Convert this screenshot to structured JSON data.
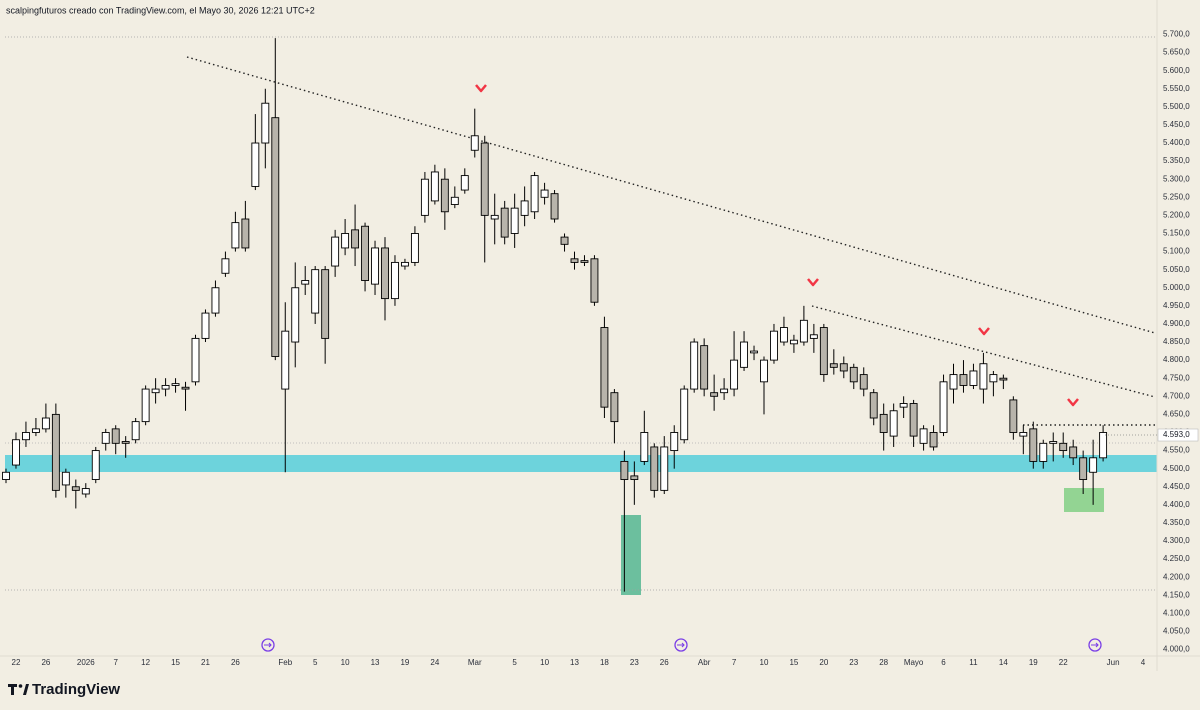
{
  "chart_data": {
    "type": "candlestick",
    "title": "scalpingfuturos creado con TradingView.com, el Mayo 30, 2026 12:21 UTC+2",
    "brand": "TradingView",
    "up_color": "#ffffff",
    "down_color": "#b8b4ab",
    "grid": false,
    "categories": [
      null,
      "22",
      null,
      null,
      "26",
      null,
      null,
      null,
      "2026",
      null,
      null,
      "7",
      null,
      null,
      "12",
      null,
      null,
      "15",
      null,
      null,
      "21",
      null,
      null,
      "26",
      null,
      null,
      null,
      null,
      "Feb",
      null,
      null,
      "5",
      null,
      null,
      "10",
      null,
      null,
      "13",
      null,
      null,
      "19",
      null,
      null,
      "24",
      null,
      null,
      null,
      "Mar",
      null,
      null,
      null,
      "5",
      null,
      null,
      "10",
      null,
      null,
      "13",
      null,
      null,
      "18",
      null,
      null,
      "23",
      null,
      null,
      "26",
      null,
      null,
      null,
      "Abr",
      null,
      null,
      "7",
      null,
      null,
      "10",
      null,
      null,
      "15",
      null,
      null,
      "20",
      null,
      null,
      "23",
      null,
      null,
      "28",
      null,
      null,
      "Mayo",
      null,
      null,
      "6",
      null,
      null,
      "11",
      null,
      null,
      "14",
      null,
      null,
      "19",
      null,
      null,
      "22",
      null,
      null,
      null,
      null,
      "Jun",
      null,
      null,
      "4"
    ],
    "open": [
      4470,
      4510,
      4580,
      4600,
      4610,
      4650,
      4455,
      4450,
      4430,
      4470,
      4570,
      4610,
      4575,
      4580,
      4630,
      4710,
      4720,
      4730,
      4725,
      4740,
      4860,
      4930,
      5040,
      5110,
      5190,
      5280,
      5400,
      5470,
      4720,
      4850,
      5010,
      4930,
      5050,
      5060,
      5110,
      5160,
      5170,
      5010,
      5110,
      4970,
      5060,
      5070,
      5200,
      5240,
      5300,
      5230,
      5270,
      5380,
      5400,
      5190,
      5220,
      5150,
      5200,
      5210,
      5250,
      5260,
      5140,
      5080,
      5075,
      5080,
      4890,
      4710,
      4520,
      4480,
      4520,
      4560,
      4440,
      4550,
      4580,
      4720,
      4840,
      4710,
      4710,
      4720,
      4780,
      4820,
      4740,
      4800,
      4850,
      4845,
      4850,
      4860,
      4890,
      4790,
      4790,
      4780,
      4760,
      4710,
      4650,
      4590,
      4670,
      4680,
      4570,
      4600,
      4600,
      4720,
      4760,
      4730,
      4720,
      4740,
      4750,
      4690,
      4590,
      4610,
      4520,
      4570,
      4570,
      4560,
      4530,
      4490,
      4530,
      null,
      null,
      null,
      null
    ],
    "high": [
      4500,
      4600,
      4630,
      4640,
      4680,
      4680,
      4500,
      4470,
      4460,
      4560,
      4610,
      4620,
      4590,
      4640,
      4730,
      4750,
      4750,
      4750,
      4740,
      4870,
      4940,
      5020,
      5100,
      5210,
      5240,
      5480,
      5550,
      5690,
      4960,
      5070,
      5060,
      5060,
      5060,
      5160,
      5190,
      5230,
      5180,
      5130,
      5140,
      5090,
      5080,
      5170,
      5320,
      5340,
      5330,
      5280,
      5330,
      5495,
      5420,
      5260,
      5240,
      5260,
      5280,
      5320,
      5290,
      5270,
      5150,
      5100,
      5090,
      5090,
      4920,
      4720,
      4550,
      4520,
      4660,
      4570,
      4590,
      4620,
      4730,
      4860,
      4860,
      4760,
      4750,
      4880,
      4880,
      4840,
      4810,
      4900,
      4920,
      4870,
      4950,
      4900,
      4900,
      4830,
      4810,
      4790,
      4780,
      4720,
      4680,
      4680,
      4700,
      4690,
      4620,
      4620,
      4760,
      4790,
      4800,
      4790,
      4820,
      4770,
      4760,
      4700,
      4620,
      4630,
      4580,
      4600,
      4600,
      4580,
      4550,
      4580,
      4620,
      null,
      null,
      null,
      null
    ],
    "low": [
      4460,
      4500,
      4560,
      4590,
      4600,
      4420,
      4420,
      4390,
      4420,
      4460,
      4550,
      4540,
      4530,
      4570,
      4620,
      4680,
      4700,
      4710,
      4660,
      4730,
      4850,
      4920,
      5030,
      5100,
      5100,
      5270,
      5330,
      4800,
      4490,
      4780,
      4980,
      4900,
      4790,
      5030,
      5090,
      5060,
      4990,
      4980,
      4910,
      4950,
      5050,
      5060,
      5180,
      5230,
      5160,
      5220,
      5260,
      5360,
      5070,
      5120,
      5120,
      5110,
      5170,
      5190,
      5230,
      5180,
      5100,
      5050,
      5060,
      4950,
      4640,
      4570,
      4160,
      4400,
      4510,
      4420,
      4430,
      4500,
      4570,
      4710,
      4700,
      4660,
      4690,
      4700,
      4770,
      4800,
      4650,
      4790,
      4840,
      4820,
      4840,
      4820,
      4740,
      4760,
      4750,
      4720,
      4700,
      4620,
      4550,
      4560,
      4640,
      4560,
      4550,
      4550,
      4590,
      4680,
      4710,
      4720,
      4680,
      4700,
      4720,
      4580,
      4540,
      4500,
      4500,
      4520,
      4530,
      4510,
      4430,
      4400,
      4520,
      null,
      null,
      null,
      null
    ],
    "close": [
      4490,
      4580,
      4600,
      4610,
      4640,
      4440,
      4490,
      4440,
      4445,
      4550,
      4600,
      4570,
      4570,
      4630,
      4720,
      4720,
      4730,
      4735,
      4720,
      4860,
      4930,
      5000,
      5080,
      5180,
      5110,
      5400,
      5510,
      4810,
      4880,
      5000,
      5020,
      5050,
      4860,
      5140,
      5150,
      5110,
      5020,
      5110,
      4970,
      5070,
      5070,
      5150,
      5300,
      5320,
      5210,
      5250,
      5310,
      5420,
      5200,
      5200,
      5140,
      5220,
      5240,
      5310,
      5270,
      5190,
      5120,
      5070,
      5070,
      4960,
      4670,
      4630,
      4470,
      4470,
      4600,
      4440,
      4560,
      4600,
      4720,
      4850,
      4720,
      4700,
      4720,
      4800,
      4850,
      4825,
      4800,
      4880,
      4890,
      4855,
      4910,
      4870,
      4760,
      4780,
      4770,
      4740,
      4720,
      4640,
      4600,
      4660,
      4680,
      4590,
      4610,
      4560,
      4740,
      4760,
      4730,
      4770,
      4790,
      4760,
      4745,
      4600,
      4600,
      4520,
      4570,
      4575,
      4550,
      4530,
      4470,
      4530,
      4600,
      null,
      null,
      null,
      null
    ],
    "ylim": [
      3985,
      5740
    ],
    "yticks": [
      {
        "value": 4000,
        "label": "4.000,0"
      },
      {
        "value": 4050,
        "label": "4.050,0"
      },
      {
        "value": 4100,
        "label": "4.100,0"
      },
      {
        "value": 4150,
        "label": "4.150,0"
      },
      {
        "value": 4200,
        "label": "4.200,0"
      },
      {
        "value": 4250,
        "label": "4.250,0"
      },
      {
        "value": 4300,
        "label": "4.300,0"
      },
      {
        "value": 4350,
        "label": "4.350,0"
      },
      {
        "value": 4400,
        "label": "4.400,0"
      },
      {
        "value": 4450,
        "label": "4.450,0"
      },
      {
        "value": 4500,
        "label": "4.500,0"
      },
      {
        "value": 4550,
        "label": "4.550,0"
      },
      {
        "value": 4600,
        "label": "4.600,0"
      },
      {
        "value": 4650,
        "label": "4.650,0"
      },
      {
        "value": 4700,
        "label": "4.700,0"
      },
      {
        "value": 4750,
        "label": "4.750,0"
      },
      {
        "value": 4800,
        "label": "4.800,0"
      },
      {
        "value": 4850,
        "label": "4.850,0"
      },
      {
        "value": 4900,
        "label": "4.900,0"
      },
      {
        "value": 4950,
        "label": "4.950,0"
      },
      {
        "value": 5000,
        "label": "5.000,0"
      },
      {
        "value": 5050,
        "label": "5.050,0"
      },
      {
        "value": 5100,
        "label": "5.100,0"
      },
      {
        "value": 5150,
        "label": "5.150,0"
      },
      {
        "value": 5200,
        "label": "5.200,0"
      },
      {
        "value": 5250,
        "label": "5.250,0"
      },
      {
        "value": 5300,
        "label": "5.300,0"
      },
      {
        "value": 5350,
        "label": "5.350,0"
      },
      {
        "value": 5400,
        "label": "5.400,0"
      },
      {
        "value": 5450,
        "label": "5.450,0"
      },
      {
        "value": 5500,
        "label": "5.500,0"
      },
      {
        "value": 5550,
        "label": "5.550,0"
      },
      {
        "value": 5600,
        "label": "5.600,0"
      },
      {
        "value": 5650,
        "label": "5.650,0"
      },
      {
        "value": 5700,
        "label": "5.700,0"
      }
    ],
    "last_price": {
      "value": 4593,
      "label": "4.593,0"
    }
  }
}
